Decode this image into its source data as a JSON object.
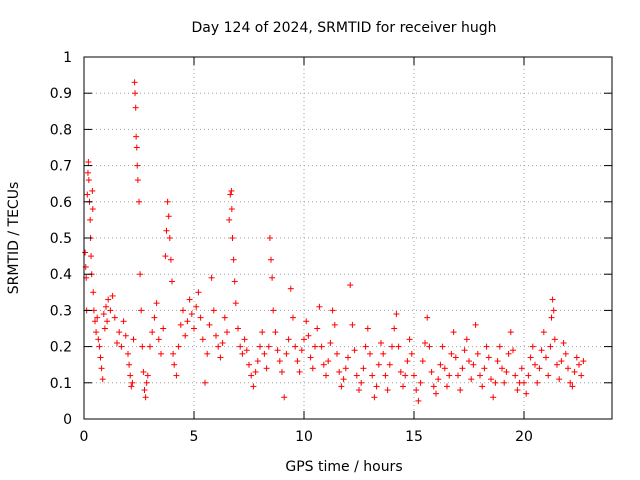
{
  "chart_data": {
    "type": "scatter",
    "title": "Day 124 of 2024, SRMTID for receiver hugh",
    "xlabel": "GPS time / hours",
    "ylabel": "SRMTID / TECUs",
    "xlim": [
      0,
      24
    ],
    "ylim": [
      0,
      1
    ],
    "xticks": [
      0,
      5,
      10,
      15,
      20
    ],
    "xtick_labels": [
      "0",
      "5",
      "10",
      "15",
      "20"
    ],
    "yticks": [
      0,
      0.1,
      0.2,
      0.3,
      0.4,
      0.5,
      0.6,
      0.7,
      0.8,
      0.9,
      1
    ],
    "ytick_labels": [
      "0",
      "0.1",
      "0.2",
      "0.3",
      "0.4",
      "0.5",
      "0.6",
      "0.7",
      "0.8",
      "0.9",
      "1"
    ],
    "grid": true,
    "marker": "+",
    "marker_color": "#ff0000",
    "x_range_of_data": [
      0,
      22.8
    ],
    "series": [
      {
        "name": "SRMTID",
        "points": [
          [
            0.05,
            0.46
          ],
          [
            0.08,
            0.42
          ],
          [
            0.1,
            0.39
          ],
          [
            0.12,
            0.3
          ],
          [
            0.15,
            0.62
          ],
          [
            0.18,
            0.68
          ],
          [
            0.2,
            0.71
          ],
          [
            0.22,
            0.66
          ],
          [
            0.25,
            0.6
          ],
          [
            0.28,
            0.55
          ],
          [
            0.3,
            0.5
          ],
          [
            0.32,
            0.45
          ],
          [
            0.35,
            0.4
          ],
          [
            0.38,
            0.63
          ],
          [
            0.4,
            0.58
          ],
          [
            0.42,
            0.35
          ],
          [
            0.45,
            0.3
          ],
          [
            0.5,
            0.27
          ],
          [
            0.55,
            0.24
          ],
          [
            0.6,
            0.28
          ],
          [
            0.65,
            0.22
          ],
          [
            0.7,
            0.2
          ],
          [
            0.75,
            0.17
          ],
          [
            0.8,
            0.14
          ],
          [
            0.85,
            0.11
          ],
          [
            0.9,
            0.29
          ],
          [
            0.95,
            0.25
          ],
          [
            1.0,
            0.31
          ],
          [
            1.05,
            0.27
          ],
          [
            1.1,
            0.33
          ],
          [
            1.2,
            0.3
          ],
          [
            1.3,
            0.34
          ],
          [
            1.4,
            0.28
          ],
          [
            1.5,
            0.21
          ],
          [
            1.6,
            0.24
          ],
          [
            1.7,
            0.2
          ],
          [
            1.8,
            0.27
          ],
          [
            1.9,
            0.23
          ],
          [
            2.0,
            0.18
          ],
          [
            2.05,
            0.15
          ],
          [
            2.1,
            0.12
          ],
          [
            2.15,
            0.09
          ],
          [
            2.2,
            0.1
          ],
          [
            2.25,
            0.22
          ],
          [
            2.3,
            0.93
          ],
          [
            2.32,
            0.9
          ],
          [
            2.35,
            0.86
          ],
          [
            2.37,
            0.78
          ],
          [
            2.4,
            0.75
          ],
          [
            2.42,
            0.7
          ],
          [
            2.45,
            0.66
          ],
          [
            2.5,
            0.6
          ],
          [
            2.55,
            0.4
          ],
          [
            2.6,
            0.3
          ],
          [
            2.65,
            0.2
          ],
          [
            2.7,
            0.13
          ],
          [
            2.75,
            0.08
          ],
          [
            2.8,
            0.06
          ],
          [
            2.85,
            0.1
          ],
          [
            2.9,
            0.12
          ],
          [
            3.0,
            0.2
          ],
          [
            3.1,
            0.24
          ],
          [
            3.2,
            0.28
          ],
          [
            3.3,
            0.32
          ],
          [
            3.4,
            0.22
          ],
          [
            3.5,
            0.18
          ],
          [
            3.6,
            0.25
          ],
          [
            3.7,
            0.45
          ],
          [
            3.75,
            0.52
          ],
          [
            3.8,
            0.6
          ],
          [
            3.85,
            0.56
          ],
          [
            3.9,
            0.5
          ],
          [
            3.95,
            0.44
          ],
          [
            4.0,
            0.38
          ],
          [
            4.05,
            0.18
          ],
          [
            4.1,
            0.15
          ],
          [
            4.2,
            0.12
          ],
          [
            4.3,
            0.2
          ],
          [
            4.4,
            0.26
          ],
          [
            4.5,
            0.3
          ],
          [
            4.6,
            0.23
          ],
          [
            4.7,
            0.27
          ],
          [
            4.8,
            0.33
          ],
          [
            4.9,
            0.29
          ],
          [
            5.0,
            0.25
          ],
          [
            5.1,
            0.31
          ],
          [
            5.2,
            0.35
          ],
          [
            5.3,
            0.28
          ],
          [
            5.4,
            0.22
          ],
          [
            5.5,
            0.1
          ],
          [
            5.6,
            0.18
          ],
          [
            5.7,
            0.26
          ],
          [
            5.8,
            0.39
          ],
          [
            5.9,
            0.3
          ],
          [
            6.0,
            0.23
          ],
          [
            6.1,
            0.2
          ],
          [
            6.2,
            0.17
          ],
          [
            6.3,
            0.21
          ],
          [
            6.4,
            0.28
          ],
          [
            6.5,
            0.24
          ],
          [
            6.6,
            0.55
          ],
          [
            6.65,
            0.62
          ],
          [
            6.7,
            0.63
          ],
          [
            6.72,
            0.58
          ],
          [
            6.75,
            0.5
          ],
          [
            6.8,
            0.44
          ],
          [
            6.85,
            0.38
          ],
          [
            6.9,
            0.32
          ],
          [
            7.0,
            0.25
          ],
          [
            7.1,
            0.2
          ],
          [
            7.2,
            0.18
          ],
          [
            7.3,
            0.22
          ],
          [
            7.4,
            0.19
          ],
          [
            7.5,
            0.15
          ],
          [
            7.6,
            0.12
          ],
          [
            7.7,
            0.09
          ],
          [
            7.8,
            0.13
          ],
          [
            7.9,
            0.16
          ],
          [
            8.0,
            0.2
          ],
          [
            8.1,
            0.24
          ],
          [
            8.2,
            0.18
          ],
          [
            8.3,
            0.14
          ],
          [
            8.4,
            0.2
          ],
          [
            8.45,
            0.5
          ],
          [
            8.5,
            0.44
          ],
          [
            8.55,
            0.39
          ],
          [
            8.6,
            0.3
          ],
          [
            8.7,
            0.24
          ],
          [
            8.8,
            0.19
          ],
          [
            8.9,
            0.16
          ],
          [
            9.0,
            0.13
          ],
          [
            9.1,
            0.06
          ],
          [
            9.2,
            0.18
          ],
          [
            9.3,
            0.22
          ],
          [
            9.4,
            0.36
          ],
          [
            9.5,
            0.28
          ],
          [
            9.6,
            0.2
          ],
          [
            9.7,
            0.16
          ],
          [
            9.8,
            0.13
          ],
          [
            9.9,
            0.19
          ],
          [
            10.0,
            0.22
          ],
          [
            10.1,
            0.27
          ],
          [
            10.2,
            0.23
          ],
          [
            10.3,
            0.17
          ],
          [
            10.4,
            0.14
          ],
          [
            10.5,
            0.2
          ],
          [
            10.6,
            0.25
          ],
          [
            10.7,
            0.31
          ],
          [
            10.8,
            0.2
          ],
          [
            10.9,
            0.15
          ],
          [
            11.0,
            0.12
          ],
          [
            11.1,
            0.16
          ],
          [
            11.2,
            0.21
          ],
          [
            11.3,
            0.3
          ],
          [
            11.4,
            0.26
          ],
          [
            11.5,
            0.18
          ],
          [
            11.6,
            0.13
          ],
          [
            11.7,
            0.09
          ],
          [
            11.8,
            0.11
          ],
          [
            11.9,
            0.14
          ],
          [
            12.0,
            0.17
          ],
          [
            12.1,
            0.37
          ],
          [
            12.2,
            0.26
          ],
          [
            12.3,
            0.19
          ],
          [
            12.4,
            0.12
          ],
          [
            12.5,
            0.08
          ],
          [
            12.6,
            0.1
          ],
          [
            12.7,
            0.14
          ],
          [
            12.8,
            0.2
          ],
          [
            12.9,
            0.25
          ],
          [
            13.0,
            0.18
          ],
          [
            13.1,
            0.12
          ],
          [
            13.2,
            0.06
          ],
          [
            13.3,
            0.09
          ],
          [
            13.4,
            0.15
          ],
          [
            13.5,
            0.21
          ],
          [
            13.6,
            0.18
          ],
          [
            13.7,
            0.12
          ],
          [
            13.8,
            0.08
          ],
          [
            13.9,
            0.15
          ],
          [
            14.0,
            0.2
          ],
          [
            14.1,
            0.25
          ],
          [
            14.2,
            0.29
          ],
          [
            14.3,
            0.2
          ],
          [
            14.4,
            0.13
          ],
          [
            14.5,
            0.09
          ],
          [
            14.6,
            0.12
          ],
          [
            14.7,
            0.16
          ],
          [
            14.8,
            0.22
          ],
          [
            14.9,
            0.18
          ],
          [
            15.0,
            0.12
          ],
          [
            15.1,
            0.08
          ],
          [
            15.2,
            0.05
          ],
          [
            15.3,
            0.1
          ],
          [
            15.4,
            0.16
          ],
          [
            15.5,
            0.21
          ],
          [
            15.6,
            0.28
          ],
          [
            15.7,
            0.2
          ],
          [
            15.8,
            0.13
          ],
          [
            15.9,
            0.09
          ],
          [
            16.0,
            0.07
          ],
          [
            16.1,
            0.11
          ],
          [
            16.2,
            0.15
          ],
          [
            16.3,
            0.2
          ],
          [
            16.4,
            0.14
          ],
          [
            16.5,
            0.09
          ],
          [
            16.6,
            0.12
          ],
          [
            16.7,
            0.18
          ],
          [
            16.8,
            0.24
          ],
          [
            16.9,
            0.17
          ],
          [
            17.0,
            0.12
          ],
          [
            17.1,
            0.08
          ],
          [
            17.2,
            0.14
          ],
          [
            17.3,
            0.19
          ],
          [
            17.4,
            0.22
          ],
          [
            17.5,
            0.16
          ],
          [
            17.6,
            0.11
          ],
          [
            17.7,
            0.15
          ],
          [
            17.8,
            0.26
          ],
          [
            17.9,
            0.18
          ],
          [
            18.0,
            0.12
          ],
          [
            18.1,
            0.09
          ],
          [
            18.2,
            0.14
          ],
          [
            18.3,
            0.2
          ],
          [
            18.4,
            0.17
          ],
          [
            18.5,
            0.11
          ],
          [
            18.6,
            0.06
          ],
          [
            18.7,
            0.1
          ],
          [
            18.8,
            0.16
          ],
          [
            18.9,
            0.2
          ],
          [
            19.0,
            0.14
          ],
          [
            19.1,
            0.1
          ],
          [
            19.2,
            0.13
          ],
          [
            19.3,
            0.18
          ],
          [
            19.4,
            0.24
          ],
          [
            19.5,
            0.19
          ],
          [
            19.6,
            0.12
          ],
          [
            19.7,
            0.08
          ],
          [
            19.8,
            0.1
          ],
          [
            19.9,
            0.14
          ],
          [
            20.0,
            0.1
          ],
          [
            20.1,
            0.07
          ],
          [
            20.2,
            0.12
          ],
          [
            20.3,
            0.17
          ],
          [
            20.4,
            0.2
          ],
          [
            20.5,
            0.15
          ],
          [
            20.6,
            0.1
          ],
          [
            20.7,
            0.14
          ],
          [
            20.8,
            0.19
          ],
          [
            20.9,
            0.24
          ],
          [
            21.0,
            0.17
          ],
          [
            21.1,
            0.12
          ],
          [
            21.2,
            0.2
          ],
          [
            21.25,
            0.28
          ],
          [
            21.3,
            0.33
          ],
          [
            21.35,
            0.3
          ],
          [
            21.4,
            0.22
          ],
          [
            21.5,
            0.15
          ],
          [
            21.6,
            0.11
          ],
          [
            21.7,
            0.16
          ],
          [
            21.8,
            0.21
          ],
          [
            21.9,
            0.18
          ],
          [
            22.0,
            0.14
          ],
          [
            22.1,
            0.1
          ],
          [
            22.2,
            0.09
          ],
          [
            22.3,
            0.13
          ],
          [
            22.4,
            0.17
          ],
          [
            22.5,
            0.15
          ],
          [
            22.6,
            0.12
          ],
          [
            22.7,
            0.16
          ]
        ]
      }
    ]
  }
}
